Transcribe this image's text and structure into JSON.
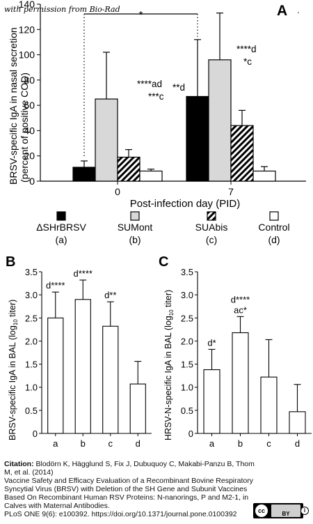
{
  "permission": "with permission from Bio-Rad",
  "chart_data": [
    {
      "panel": "A",
      "type": "bar",
      "ylabel": "BRSV-specific IgA in nasal secretion",
      "ylabel2": "(percent of positive COD)",
      "xlabel": "Post-infection day (PID)",
      "ylim": [
        0,
        140
      ],
      "yticks": [
        0,
        20,
        40,
        60,
        80,
        100,
        120,
        140
      ],
      "categories": [
        "0",
        "7"
      ],
      "series": [
        {
          "name": "ΔSHrBRSV",
          "key": "(a)",
          "fill": "black",
          "values": [
            11,
            67
          ],
          "errors": [
            5,
            45
          ]
        },
        {
          "name": "SUMont",
          "key": "(b)",
          "fill": "lightgray",
          "values": [
            65,
            96
          ],
          "errors": [
            37,
            37
          ]
        },
        {
          "name": "SUAbis",
          "key": "(c)",
          "fill": "hatched",
          "values": [
            19,
            44
          ],
          "errors": [
            6,
            12
          ]
        },
        {
          "name": "Control",
          "key": "(d)",
          "fill": "white",
          "values": [
            8,
            8
          ],
          "errors": [
            1.5,
            3.5
          ]
        }
      ],
      "annotations": [
        {
          "text": "*",
          "where": "bracket between ΔSHrBRSV day 0 and day 7"
        },
        {
          "text": "****ad",
          "where": "SUMont day 0"
        },
        {
          "text": "***c",
          "where": "SUMont day 0"
        },
        {
          "text": "**d",
          "where": "ΔSHrBRSV day 7"
        },
        {
          "text": "****d",
          "where": "SUMont day 7"
        },
        {
          "text": "*c",
          "where": "SUMont day 7"
        }
      ]
    },
    {
      "panel": "B",
      "type": "bar",
      "ylabel": "BRSV-specific IgA in BAL (log10 titer)",
      "ylim": [
        0,
        3.5
      ],
      "yticks": [
        "0",
        "0.5",
        "1.0",
        "1.5",
        "2.0",
        "2.5",
        "3.0",
        "3.5"
      ],
      "categories": [
        "a",
        "b",
        "c",
        "d"
      ],
      "values": [
        2.5,
        2.9,
        2.32,
        1.07
      ],
      "errors": [
        0.56,
        0.42,
        0.53,
        0.49
      ],
      "labels": [
        "d****",
        "d****",
        "d**",
        ""
      ]
    },
    {
      "panel": "C",
      "type": "bar",
      "ylabel": "HRSV-N-specific IgA in BAL (log10 titer)",
      "ylim": [
        0,
        3.5
      ],
      "yticks": [
        "0",
        "0.5",
        "1.0",
        "1.5",
        "2.0",
        "2.5",
        "3.0",
        "3.5"
      ],
      "categories": [
        "a",
        "b",
        "c",
        "d"
      ],
      "values": [
        1.38,
        2.18,
        1.22,
        0.47
      ],
      "errors": [
        0.44,
        0.35,
        0.81,
        0.59
      ],
      "labels": [
        "d*",
        "d****",
        "",
        ""
      ],
      "labels2": [
        "",
        "ac*",
        "",
        ""
      ]
    }
  ],
  "citation": {
    "label": "Citation:",
    "authors": "Blodörn K, Hägglund S, Fix J, Dubuquoy C, Makabi-Panzu B, Thom M, et al. (2014)",
    "title": "Vaccine Safety and Efficacy Evaluation of a Recombinant Bovine Respiratory Syncytial Virus (BRSV) with Deletion of the SH Gene and Subunit Vaccines Based On Recombinant Human RSV Proteins: N-nanorings, P and M2-1, in Calves with Maternal Antibodies.",
    "journal": "PLoS ONE 9(6): e100392. https://doi.org/10.1371/journal.pone.0100392"
  },
  "license": {
    "cc": "cc",
    "by": "BY"
  }
}
